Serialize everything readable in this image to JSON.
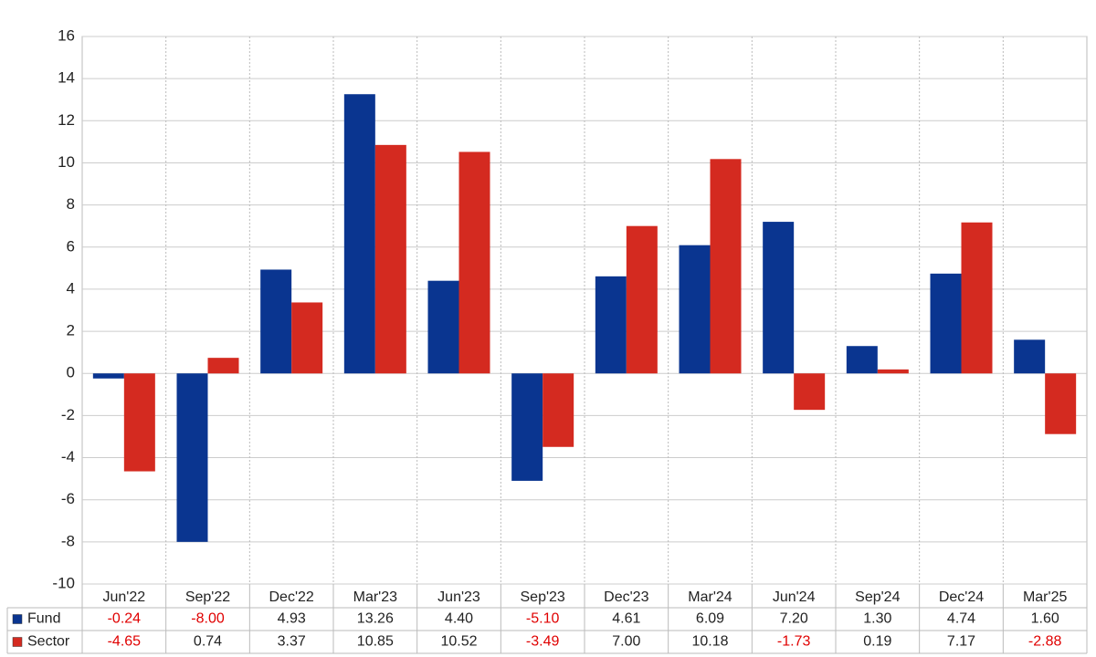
{
  "chart_data": {
    "type": "bar",
    "categories": [
      "Jun'22",
      "Sep'22",
      "Dec'22",
      "Mar'23",
      "Jun'23",
      "Sep'23",
      "Dec'23",
      "Mar'24",
      "Jun'24",
      "Sep'24",
      "Dec'24",
      "Mar'25"
    ],
    "series": [
      {
        "name": "Fund",
        "color": "#0a3590",
        "values": [
          -0.24,
          -8.0,
          4.93,
          13.26,
          4.4,
          -5.1,
          4.61,
          6.09,
          7.2,
          1.3,
          4.74,
          1.6
        ],
        "value_labels": [
          "-0.24",
          "-8.00",
          "4.93",
          "13.26",
          "4.40",
          "-5.10",
          "4.61",
          "6.09",
          "7.20",
          "1.30",
          "4.74",
          "1.60"
        ]
      },
      {
        "name": "Sector",
        "color": "#d42a20",
        "values": [
          -4.65,
          0.74,
          3.37,
          10.85,
          10.52,
          -3.49,
          7.0,
          10.18,
          -1.73,
          0.19,
          7.17,
          -2.88
        ],
        "value_labels": [
          "-4.65",
          "0.74",
          "3.37",
          "10.85",
          "10.52",
          "-3.49",
          "7.00",
          "10.18",
          "-1.73",
          "0.19",
          "7.17",
          "-2.88"
        ]
      }
    ],
    "ylim": [
      -10,
      16
    ],
    "yticks": [
      -10,
      -8,
      -6,
      -4,
      -2,
      0,
      2,
      4,
      6,
      8,
      10,
      12,
      14,
      16
    ],
    "grid": true
  }
}
